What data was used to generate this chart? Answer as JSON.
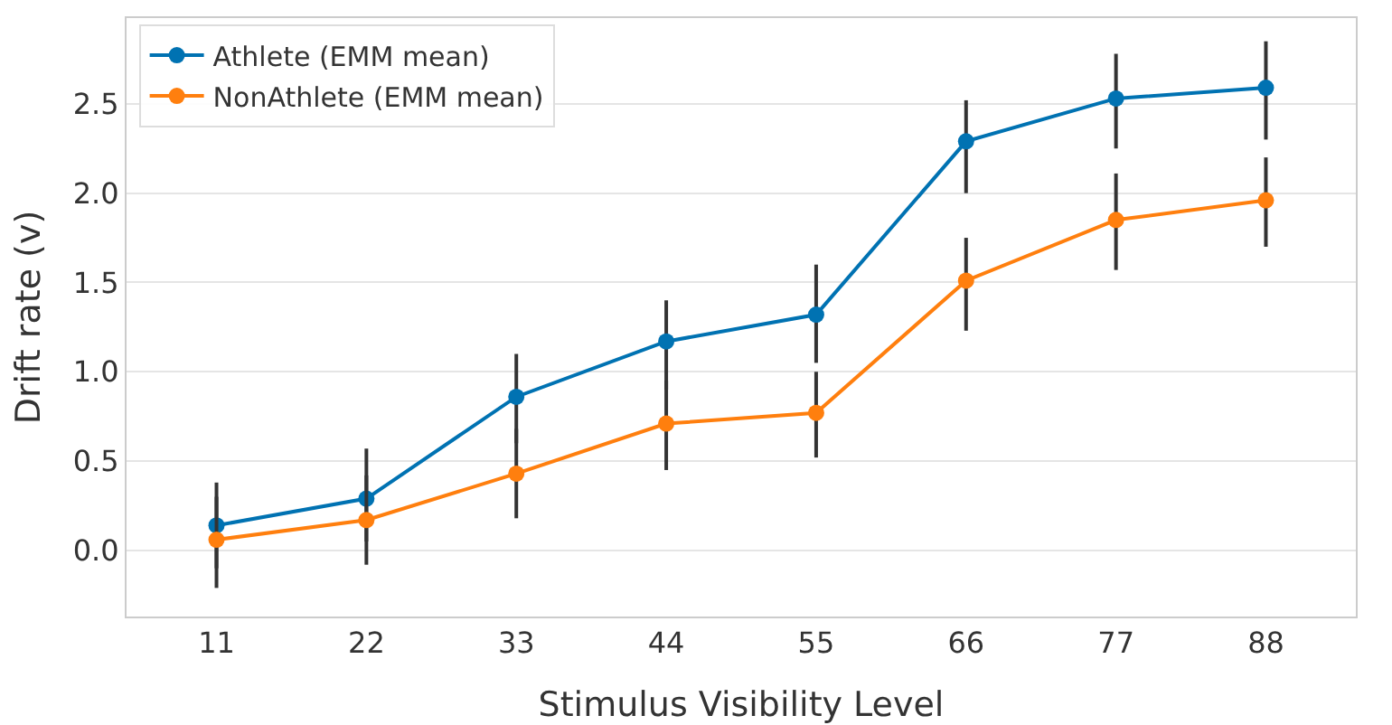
{
  "chart_data": {
    "type": "line",
    "xlabel": "Stimulus Visibility Level",
    "ylabel": "Drift rate (v)",
    "categories": [
      "11",
      "22",
      "33",
      "44",
      "55",
      "66",
      "77",
      "88"
    ],
    "series": [
      {
        "name": "Athlete (EMM mean)",
        "color": "#0072b2",
        "values": [
          0.14,
          0.29,
          0.86,
          1.17,
          1.32,
          2.29,
          2.53,
          2.59
        ],
        "errors": [
          [
            -0.1,
            0.38
          ],
          [
            0.05,
            0.57
          ],
          [
            0.6,
            1.1
          ],
          [
            0.9,
            1.4
          ],
          [
            1.05,
            1.6
          ],
          [
            2.0,
            2.52
          ],
          [
            2.25,
            2.78
          ],
          [
            2.3,
            2.85
          ]
        ]
      },
      {
        "name": "NonAthlete (EMM mean)",
        "color": "#ff7f0e",
        "values": [
          0.06,
          0.17,
          0.43,
          0.71,
          0.77,
          1.51,
          1.85,
          1.96
        ],
        "errors": [
          [
            -0.21,
            0.3
          ],
          [
            -0.08,
            0.42
          ],
          [
            0.18,
            0.68
          ],
          [
            0.45,
            0.95
          ],
          [
            0.52,
            1.0
          ],
          [
            1.23,
            1.75
          ],
          [
            1.57,
            2.11
          ],
          [
            1.7,
            2.2
          ]
        ]
      }
    ],
    "ylim": [
      -0.37,
      2.98
    ],
    "yticks": [
      {
        "value": 0,
        "label": "0.0"
      },
      0.5,
      {
        "value": 1,
        "label": "1.0"
      },
      1.5,
      {
        "value": 2,
        "label": "2.0"
      },
      2.5
    ],
    "grid": "y",
    "legend": "top left",
    "marker": "circle",
    "line_style": "solid"
  }
}
